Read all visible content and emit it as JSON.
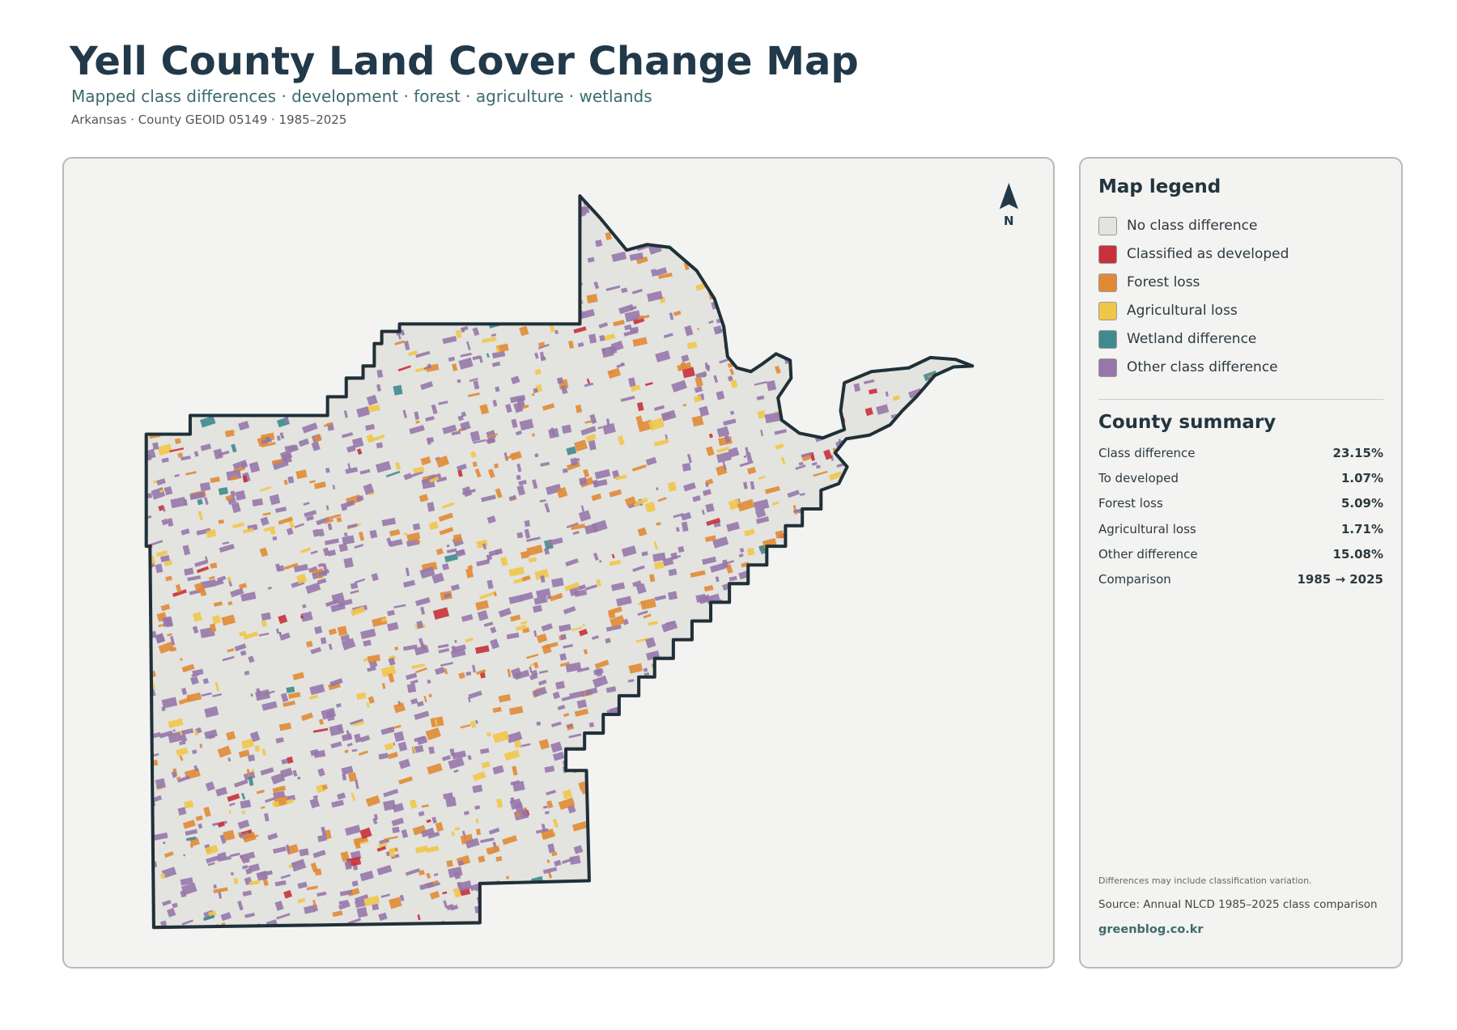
{
  "header": {
    "title": "Yell County Land Cover Change Map",
    "subtitle": "Mapped class differences · development · forest · agriculture · wetlands",
    "meta": "Arkansas · County GEOID 05149 · 1985–2025"
  },
  "map": {
    "north_label": "N"
  },
  "legend": {
    "title": "Map legend",
    "items": [
      {
        "label": "No class difference",
        "color": "#e3e3e0"
      },
      {
        "label": "Classified as developed",
        "color": "#c8303a"
      },
      {
        "label": "Forest loss",
        "color": "#e08a35"
      },
      {
        "label": "Agricultural loss",
        "color": "#f0c64a"
      },
      {
        "label": "Wetland difference",
        "color": "#3f8a8e"
      },
      {
        "label": "Other class difference",
        "color": "#9677aa"
      }
    ]
  },
  "summary": {
    "title": "County summary",
    "rows": [
      {
        "label": "Class difference",
        "value": "23.15%"
      },
      {
        "label": "To developed",
        "value": "1.07%"
      },
      {
        "label": "Forest loss",
        "value": "5.09%"
      },
      {
        "label": "Agricultural loss",
        "value": "1.71%"
      },
      {
        "label": "Other difference",
        "value": "15.08%"
      },
      {
        "label": "Comparison",
        "value": "1985 → 2025"
      }
    ]
  },
  "footer": {
    "note": "Differences may include classification variation.",
    "source": "Source: Annual NLCD 1985–2025 class comparison",
    "credit": "greenblog.co.kr"
  }
}
